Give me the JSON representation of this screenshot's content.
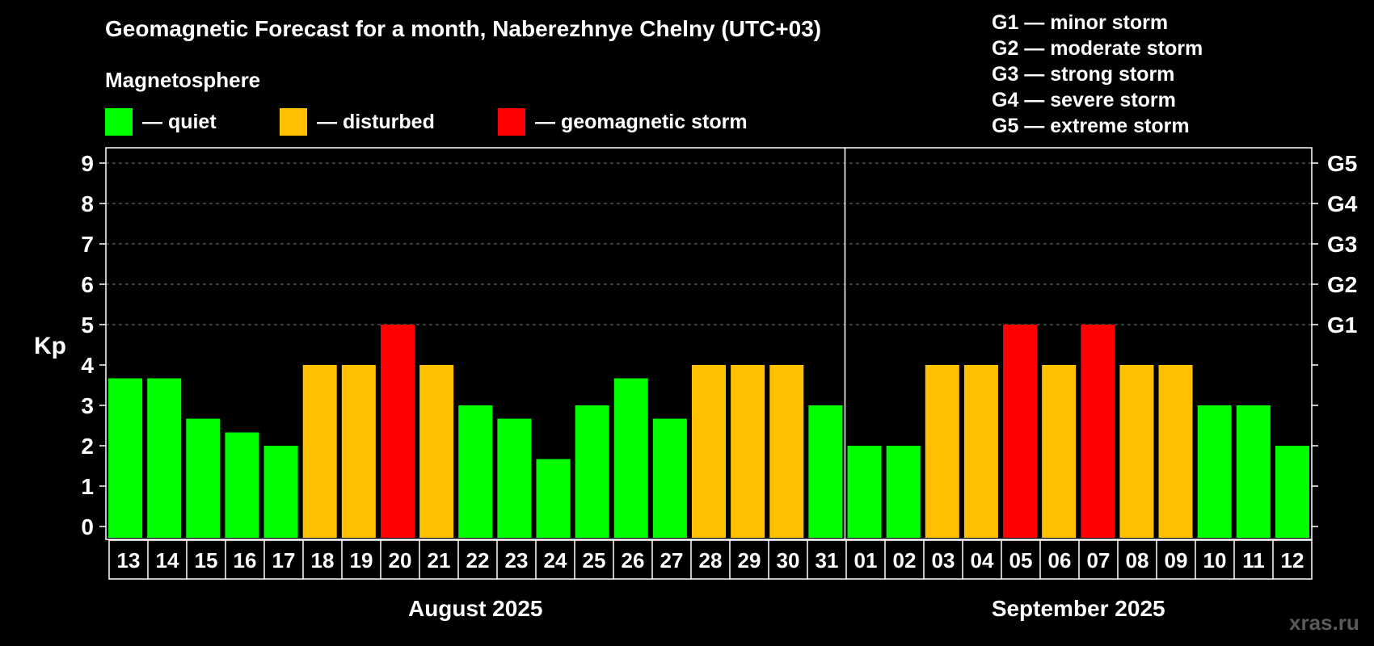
{
  "title": "Geomagnetic Forecast for a month, Naberezhnye Chelny (UTC+03)",
  "legend": {
    "heading": "Magnetosphere",
    "items": [
      {
        "label": "— quiet",
        "color": "#00ff00"
      },
      {
        "label": "— disturbed",
        "color": "#ffc000"
      },
      {
        "label": "— geomagnetic storm",
        "color": "#ff0000"
      }
    ]
  },
  "g_scale": [
    "G1 — minor storm",
    "G2 — moderate storm",
    "G3 — strong storm",
    "G4 — severe storm",
    "G5 — extreme storm"
  ],
  "watermark": "xras.ru",
  "chart_data": {
    "type": "bar",
    "ylabel": "Kp",
    "ylim": [
      0,
      9
    ],
    "yticks": [
      0,
      1,
      2,
      3,
      4,
      5,
      6,
      7,
      8,
      9
    ],
    "right_axis_labels": [
      {
        "value": 5,
        "label": "G1"
      },
      {
        "value": 6,
        "label": "G2"
      },
      {
        "value": 7,
        "label": "G3"
      },
      {
        "value": 8,
        "label": "G4"
      },
      {
        "value": 9,
        "label": "G5"
      }
    ],
    "grid": "dashed horizontal",
    "categories": [
      "13",
      "14",
      "15",
      "16",
      "17",
      "18",
      "19",
      "20",
      "21",
      "22",
      "23",
      "24",
      "25",
      "26",
      "27",
      "28",
      "29",
      "30",
      "31",
      "01",
      "02",
      "03",
      "04",
      "05",
      "06",
      "07",
      "08",
      "09",
      "10",
      "11",
      "12"
    ],
    "values": [
      3.67,
      3.67,
      2.67,
      2.33,
      2,
      4,
      4,
      5,
      4,
      3,
      2.67,
      1.67,
      3,
      3.67,
      2.67,
      4,
      4,
      4,
      3,
      2,
      2,
      4,
      4,
      5,
      4,
      5,
      4,
      4,
      3,
      3,
      2
    ],
    "levels": [
      "quiet",
      "quiet",
      "quiet",
      "quiet",
      "quiet",
      "disturbed",
      "disturbed",
      "storm",
      "disturbed",
      "quiet",
      "quiet",
      "quiet",
      "quiet",
      "quiet",
      "quiet",
      "disturbed",
      "disturbed",
      "disturbed",
      "quiet",
      "quiet",
      "quiet",
      "disturbed",
      "disturbed",
      "storm",
      "disturbed",
      "storm",
      "disturbed",
      "disturbed",
      "quiet",
      "quiet",
      "quiet"
    ],
    "level_colors": {
      "quiet": "#00ff00",
      "disturbed": "#ffc000",
      "storm": "#ff0000"
    },
    "months": [
      {
        "label": "August 2025",
        "count": 19
      },
      {
        "label": "September 2025",
        "count": 12
      }
    ]
  }
}
